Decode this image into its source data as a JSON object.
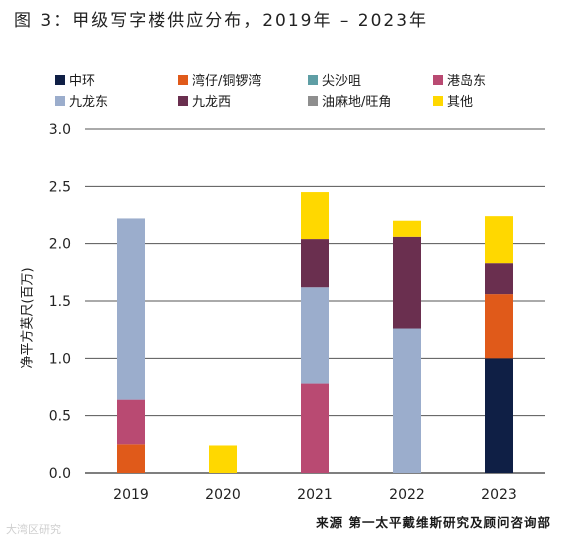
{
  "title": "图 3：甲级写字楼供应分布，2019年 – 2023年",
  "source": "来源 第一太平戴维斯研究及顾问咨询部",
  "watermark": "大湾区研究",
  "chart_data": {
    "type": "bar",
    "stacked": true,
    "categories": [
      "2019",
      "2020",
      "2021",
      "2022",
      "2023"
    ],
    "ylabel": "净平方英尺(百万)",
    "ylim": [
      0,
      3.0
    ],
    "yticks": [
      "0.0",
      "0.5",
      "1.0",
      "1.5",
      "2.0",
      "2.5",
      "3.0"
    ],
    "grid": true,
    "legend_position": "top",
    "series": [
      {
        "name": "中环",
        "color": "#0f1f45",
        "values": [
          0,
          0,
          0,
          0,
          1.0
        ]
      },
      {
        "name": "湾仔/铜锣湾",
        "color": "#e05a1a",
        "values": [
          0.25,
          0,
          0,
          0,
          0.56
        ]
      },
      {
        "name": "尖沙咀",
        "color": "#5f9ea5",
        "values": [
          0,
          0,
          0,
          0,
          0
        ]
      },
      {
        "name": "港岛东",
        "color": "#b94a72",
        "values": [
          0.39,
          0,
          0.78,
          0,
          0
        ]
      },
      {
        "name": "九龙东",
        "color": "#9badcc",
        "values": [
          1.58,
          0,
          0.84,
          1.26,
          0
        ]
      },
      {
        "name": "九龙西",
        "color": "#6a2f4f",
        "values": [
          0,
          0,
          0.42,
          0.8,
          0.27
        ]
      },
      {
        "name": "油麻地/旺角",
        "color": "#8e8e8e",
        "values": [
          0,
          0,
          0,
          0,
          0
        ]
      },
      {
        "name": "其他",
        "color": "#ffd800",
        "values": [
          0,
          0.24,
          0.41,
          0.14,
          0.41
        ]
      }
    ]
  }
}
